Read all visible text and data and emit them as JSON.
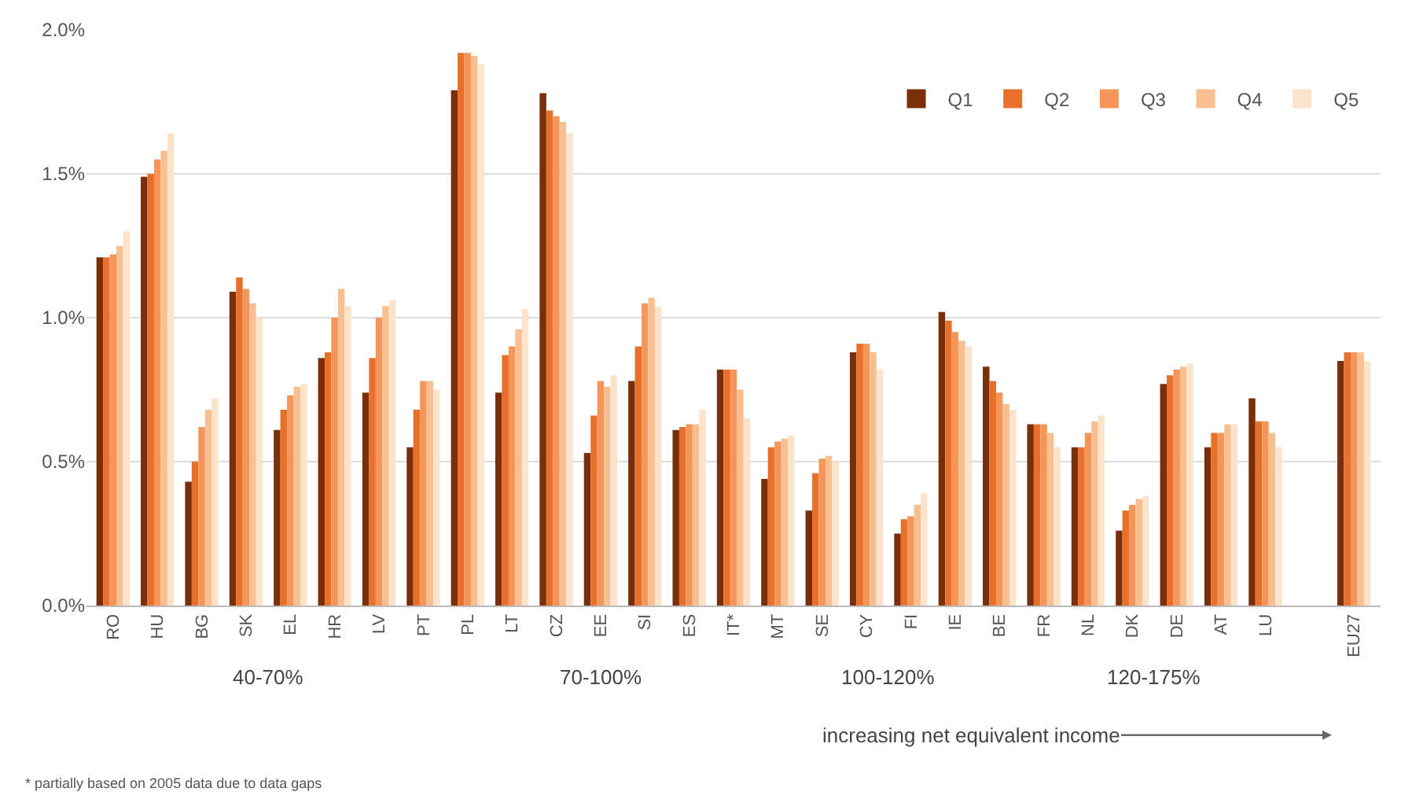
{
  "chart_data": {
    "type": "bar",
    "categories": [
      "RO",
      "HU",
      "BG",
      "SK",
      "EL",
      "HR",
      "LV",
      "PT",
      "PL",
      "LT",
      "CZ",
      "EE",
      "SI",
      "ES",
      "IT*",
      "MT",
      "SE",
      "CY",
      "FI",
      "IE",
      "BE",
      "FR",
      "NL",
      "DK",
      "DE",
      "AT",
      "LU",
      null,
      "EU27"
    ],
    "series": [
      {
        "name": "Q1",
        "color": "#7a2e0a",
        "values": [
          1.21,
          1.49,
          0.43,
          1.09,
          0.61,
          0.86,
          0.74,
          0.55,
          1.79,
          0.74,
          1.78,
          0.53,
          0.78,
          0.61,
          0.82,
          0.44,
          0.33,
          0.88,
          0.25,
          1.02,
          0.83,
          0.63,
          0.55,
          0.26,
          0.77,
          0.55,
          0.72,
          null,
          0.85
        ]
      },
      {
        "name": "Q2",
        "color": "#e8702a",
        "values": [
          1.21,
          1.5,
          0.5,
          1.14,
          0.68,
          0.88,
          0.86,
          0.68,
          1.92,
          0.87,
          1.72,
          0.66,
          0.9,
          0.62,
          0.82,
          0.55,
          0.46,
          0.91,
          0.3,
          0.99,
          0.78,
          0.63,
          0.55,
          0.33,
          0.8,
          0.6,
          0.64,
          null,
          0.88
        ]
      },
      {
        "name": "Q3",
        "color": "#f4955a",
        "values": [
          1.22,
          1.55,
          0.62,
          1.1,
          0.73,
          1.0,
          1.0,
          0.78,
          1.92,
          0.9,
          1.7,
          0.78,
          1.05,
          0.63,
          0.82,
          0.57,
          0.51,
          0.91,
          0.31,
          0.95,
          0.74,
          0.63,
          0.6,
          0.35,
          0.82,
          0.6,
          0.64,
          null,
          0.88
        ]
      },
      {
        "name": "Q4",
        "color": "#f8bf90",
        "values": [
          1.25,
          1.58,
          0.68,
          1.05,
          0.76,
          1.1,
          1.04,
          0.78,
          1.91,
          0.96,
          1.68,
          0.76,
          1.07,
          0.63,
          0.75,
          0.58,
          0.52,
          0.88,
          0.35,
          0.92,
          0.7,
          0.6,
          0.64,
          0.37,
          0.83,
          0.63,
          0.6,
          null,
          0.88
        ]
      },
      {
        "name": "Q5",
        "color": "#fbe3cc",
        "values": [
          1.3,
          1.64,
          0.72,
          1.0,
          0.77,
          1.04,
          1.06,
          0.75,
          1.88,
          1.03,
          1.64,
          0.8,
          1.04,
          0.68,
          0.65,
          0.59,
          0.5,
          0.82,
          0.39,
          0.9,
          0.68,
          0.55,
          0.66,
          0.38,
          0.84,
          0.63,
          0.55,
          null,
          0.85
        ]
      }
    ],
    "ylim": [
      0,
      2.0
    ],
    "yticks": [
      {
        "value": 0,
        "label": "0.0%"
      },
      {
        "value": 0.5,
        "label": "0.5%"
      },
      {
        "value": 1.0,
        "label": "1.0%"
      },
      {
        "value": 1.5,
        "label": "1.5%"
      },
      {
        "value": 2.0,
        "label": "2.0%"
      }
    ],
    "grid": "y",
    "legend": "top right",
    "annotations": [
      "40-70%",
      "70-100%",
      "100-120%",
      "120-175%",
      "increasing net equivalent income",
      "* partially based on 2005 data due to data gaps"
    ]
  }
}
